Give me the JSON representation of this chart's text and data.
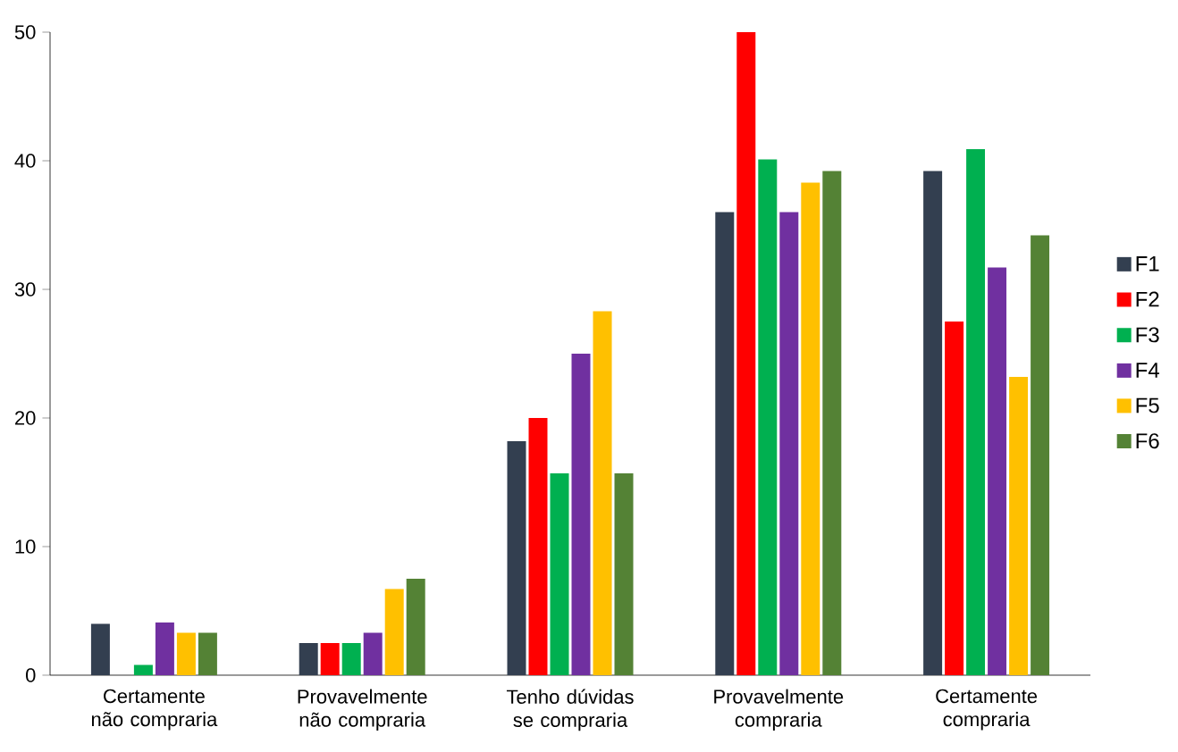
{
  "chart_data": {
    "type": "bar",
    "categories": [
      "Certamente não compraria",
      "Provavelmente não compraria",
      "Tenho dúvidas se compraria",
      "Provavelmente compraria",
      "Certamente compraria"
    ],
    "series": [
      {
        "name": "F1",
        "color": "#333f50",
        "values": [
          4.0,
          2.5,
          18.2,
          36.0,
          39.2
        ]
      },
      {
        "name": "F2",
        "color": "#ff0000",
        "values": [
          0,
          2.5,
          20.0,
          50.0,
          27.5
        ]
      },
      {
        "name": "F3",
        "color": "#00b050",
        "values": [
          0.8,
          2.5,
          15.7,
          40.1,
          40.9
        ]
      },
      {
        "name": "F4",
        "color": "#7030a0",
        "values": [
          4.1,
          3.3,
          25.0,
          36.0,
          31.7
        ]
      },
      {
        "name": "F5",
        "color": "#ffc000",
        "values": [
          3.3,
          6.7,
          28.3,
          38.3,
          23.2
        ]
      },
      {
        "name": "F6",
        "color": "#548235",
        "values": [
          3.3,
          7.5,
          15.7,
          39.2,
          34.2
        ]
      }
    ],
    "ylim": [
      0,
      50
    ],
    "yticks": [
      0,
      10,
      20,
      30,
      40,
      50
    ],
    "grid": false,
    "legend": "right"
  }
}
